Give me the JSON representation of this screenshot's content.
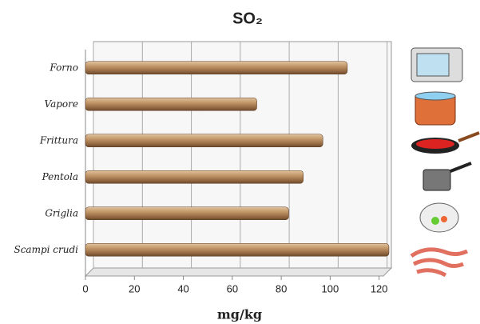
{
  "chart_data": {
    "type": "bar",
    "orientation": "horizontal",
    "title": "SO₂",
    "x_label": "mg/kg",
    "categories": [
      "Forno",
      "Vapore",
      "Frittura",
      "Pentola",
      "Griglia",
      "Scampi crudi"
    ],
    "values": [
      107,
      70,
      97,
      89,
      83,
      124
    ],
    "color": "#b88a60",
    "xlim": [
      0,
      125
    ],
    "xticks": [
      0,
      20,
      40,
      60,
      80,
      100,
      120
    ],
    "grid": true
  }
}
